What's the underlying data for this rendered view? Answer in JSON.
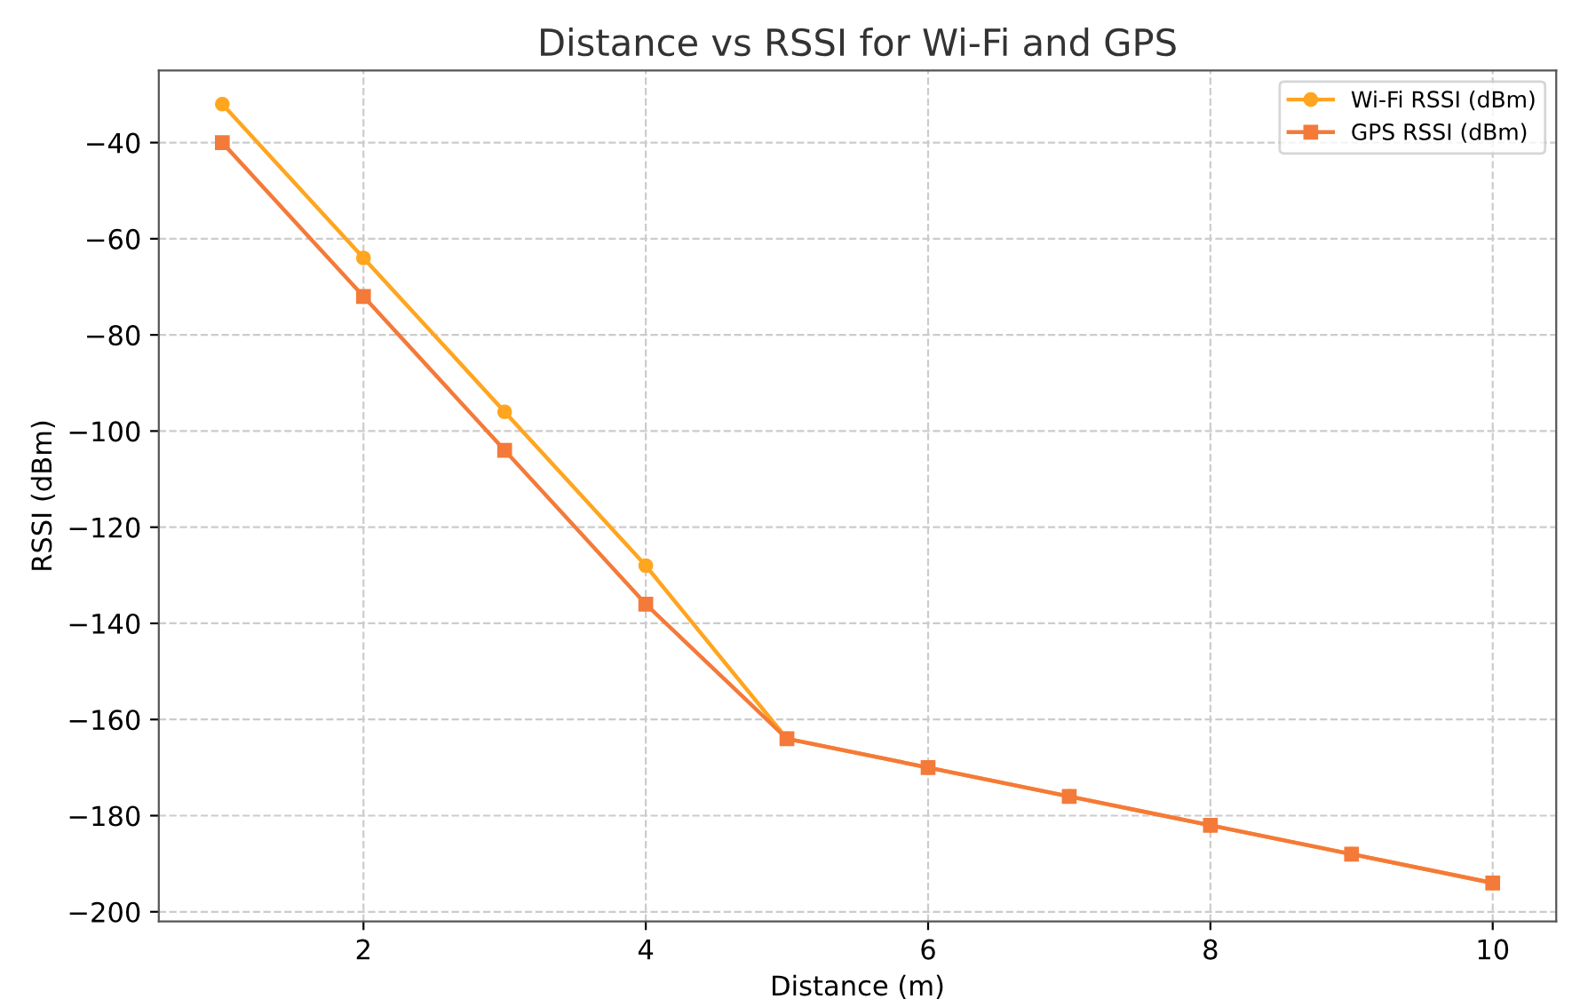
{
  "chart_data": {
    "type": "line",
    "title": "Distance vs RSSI for Wi-Fi and GPS",
    "xlabel": "Distance (m)",
    "ylabel": "RSSI (dBm)",
    "x": [
      1,
      2,
      3,
      4,
      5,
      6,
      7,
      8,
      9,
      10
    ],
    "series": [
      {
        "name": "Wi-Fi RSSI (dBm)",
        "color": "#ffa51f",
        "marker": "circle",
        "values": [
          -32,
          -64,
          -96,
          -128,
          -164,
          -170,
          -176,
          -182,
          -188,
          -194
        ]
      },
      {
        "name": "GPS RSSI (dBm)",
        "color": "#f47a3a",
        "marker": "square",
        "values": [
          -40,
          -72,
          -104,
          -136,
          -164,
          -170,
          -176,
          -182,
          -188,
          -194
        ]
      }
    ],
    "xlim": [
      0.55,
      10.45
    ],
    "xticks": [
      2,
      4,
      6,
      8,
      10
    ],
    "ylim": [
      -202,
      -25
    ],
    "yticks": [
      -200,
      -180,
      -160,
      -140,
      -120,
      -100,
      -80,
      -60,
      -40
    ],
    "grid": true,
    "legend": "top right",
    "line_style": "solid"
  }
}
